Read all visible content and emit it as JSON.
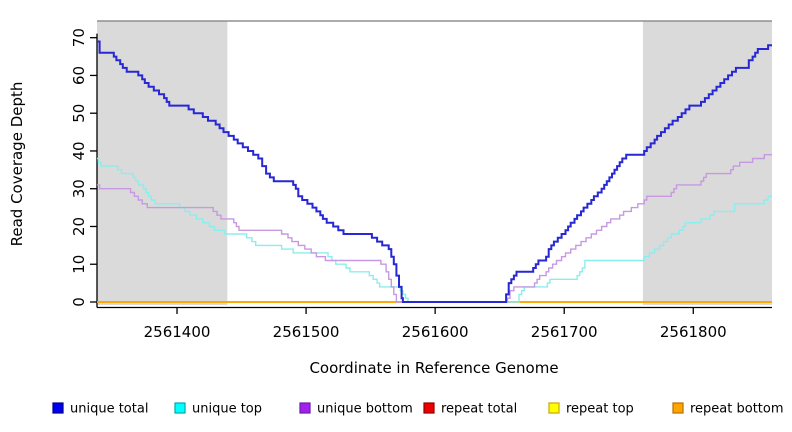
{
  "chart_data": {
    "type": "line",
    "subtype": "step",
    "title": "",
    "xlabel": "Coordinate in Reference Genome",
    "ylabel": "Read Coverage Depth",
    "xlim": [
      2561338,
      2561861
    ],
    "ylim": [
      0,
      70
    ],
    "x_ticks": [
      2561400,
      2561500,
      2561600,
      2561700,
      2561800
    ],
    "x_tick_labels": [
      "2561400",
      "2561500",
      "2561600",
      "2561700",
      "2561800"
    ],
    "y_ticks": [
      0,
      10,
      20,
      30,
      40,
      50,
      60,
      70
    ],
    "y_tick_labels": [
      "0",
      "10",
      "20",
      "30",
      "40",
      "50",
      "60",
      "70"
    ],
    "grid": false,
    "legend_position": "bottom",
    "shaded_regions": [
      {
        "x0": 2561338,
        "x1": 2561439,
        "color": "#dadada"
      },
      {
        "x0": 2561761,
        "x1": 2561861,
        "color": "#dadada"
      }
    ],
    "series": [
      {
        "name": "repeat total",
        "line_color": "#dd0000",
        "legend_fill": "#ee0000",
        "legend_border": "#8b0000",
        "width": 1.4,
        "points": [
          [
            2561338,
            0
          ],
          [
            2561861,
            0
          ]
        ]
      },
      {
        "name": "repeat top",
        "line_color": "#ffff33",
        "legend_fill": "#ffff00",
        "legend_border": "#c8a800",
        "width": 1.4,
        "points": [
          [
            2561338,
            0
          ],
          [
            2561861,
            0
          ]
        ]
      },
      {
        "name": "repeat bottom",
        "line_color": "#ffa500",
        "legend_fill": "#ffa500",
        "legend_border": "#b86e00",
        "width": 1.7,
        "points": [
          [
            2561338,
            0
          ],
          [
            2561861,
            0
          ]
        ]
      },
      {
        "name": "unique top",
        "line_color": "#8ceded",
        "legend_fill": "#00ffff",
        "legend_border": "#00aaaa",
        "width": 1.4,
        "points": [
          [
            2561338,
            38
          ],
          [
            2561339,
            37
          ],
          [
            2561341,
            36
          ],
          [
            2561354,
            35
          ],
          [
            2561357,
            34
          ],
          [
            2561366,
            33
          ],
          [
            2561368,
            32
          ],
          [
            2561370,
            31
          ],
          [
            2561374,
            30
          ],
          [
            2561376,
            29
          ],
          [
            2561378,
            28
          ],
          [
            2561380,
            27
          ],
          [
            2561383,
            26
          ],
          [
            2561402,
            25
          ],
          [
            2561406,
            24
          ],
          [
            2561410,
            23
          ],
          [
            2561415,
            22
          ],
          [
            2561420,
            21
          ],
          [
            2561425,
            20
          ],
          [
            2561429,
            19
          ],
          [
            2561437,
            18
          ],
          [
            2561454,
            17
          ],
          [
            2561458,
            16
          ],
          [
            2561461,
            15
          ],
          [
            2561481,
            14
          ],
          [
            2561490,
            13
          ],
          [
            2561517,
            12
          ],
          [
            2561520,
            11
          ],
          [
            2561523,
            10
          ],
          [
            2561531,
            9
          ],
          [
            2561534,
            8
          ],
          [
            2561549,
            7
          ],
          [
            2561552,
            6
          ],
          [
            2561555,
            5
          ],
          [
            2561557,
            4
          ],
          [
            2561573,
            3
          ],
          [
            2561575,
            2
          ],
          [
            2561577,
            1
          ],
          [
            2561579,
            0
          ],
          [
            2561665,
            2
          ],
          [
            2561667,
            3
          ],
          [
            2561669,
            4
          ],
          [
            2561687,
            5
          ],
          [
            2561689,
            6
          ],
          [
            2561710,
            7
          ],
          [
            2561712,
            8
          ],
          [
            2561714,
            9
          ],
          [
            2561716,
            11
          ],
          [
            2561762,
            12
          ],
          [
            2561766,
            13
          ],
          [
            2561770,
            14
          ],
          [
            2561774,
            15
          ],
          [
            2561777,
            16
          ],
          [
            2561780,
            17
          ],
          [
            2561783,
            18
          ],
          [
            2561789,
            19
          ],
          [
            2561792,
            20
          ],
          [
            2561794,
            21
          ],
          [
            2561806,
            22
          ],
          [
            2561813,
            23
          ],
          [
            2561816,
            24
          ],
          [
            2561832,
            26
          ],
          [
            2561855,
            27
          ],
          [
            2561858,
            28
          ]
        ]
      },
      {
        "name": "unique bottom",
        "line_color": "#c699e1",
        "legend_fill": "#a020f0",
        "legend_border": "#701aa8",
        "width": 1.4,
        "points": [
          [
            2561338,
            31
          ],
          [
            2561340,
            30
          ],
          [
            2561364,
            29
          ],
          [
            2561367,
            28
          ],
          [
            2561370,
            27
          ],
          [
            2561373,
            26
          ],
          [
            2561377,
            25
          ],
          [
            2561428,
            24
          ],
          [
            2561431,
            23
          ],
          [
            2561434,
            22
          ],
          [
            2561444,
            21
          ],
          [
            2561446,
            20
          ],
          [
            2561448,
            19
          ],
          [
            2561481,
            18
          ],
          [
            2561486,
            17
          ],
          [
            2561489,
            16
          ],
          [
            2561494,
            15
          ],
          [
            2561499,
            14
          ],
          [
            2561504,
            13
          ],
          [
            2561508,
            12
          ],
          [
            2561515,
            11
          ],
          [
            2561558,
            10
          ],
          [
            2561562,
            8
          ],
          [
            2561564,
            6
          ],
          [
            2561566,
            4
          ],
          [
            2561568,
            2
          ],
          [
            2561570,
            0
          ],
          [
            2561656,
            1
          ],
          [
            2561658,
            3
          ],
          [
            2561661,
            4
          ],
          [
            2561677,
            5
          ],
          [
            2561679,
            6
          ],
          [
            2561681,
            7
          ],
          [
            2561686,
            8
          ],
          [
            2561688,
            9
          ],
          [
            2561691,
            10
          ],
          [
            2561694,
            11
          ],
          [
            2561698,
            12
          ],
          [
            2561701,
            13
          ],
          [
            2561705,
            14
          ],
          [
            2561709,
            15
          ],
          [
            2561713,
            16
          ],
          [
            2561717,
            17
          ],
          [
            2561721,
            18
          ],
          [
            2561725,
            19
          ],
          [
            2561729,
            20
          ],
          [
            2561733,
            21
          ],
          [
            2561736,
            22
          ],
          [
            2561743,
            23
          ],
          [
            2561746,
            24
          ],
          [
            2561752,
            25
          ],
          [
            2561757,
            26
          ],
          [
            2561762,
            27
          ],
          [
            2561764,
            28
          ],
          [
            2561783,
            29
          ],
          [
            2561785,
            30
          ],
          [
            2561787,
            31
          ],
          [
            2561806,
            32
          ],
          [
            2561808,
            33
          ],
          [
            2561810,
            34
          ],
          [
            2561829,
            35
          ],
          [
            2561831,
            36
          ],
          [
            2561836,
            37
          ],
          [
            2561846,
            38
          ],
          [
            2561855,
            39
          ]
        ]
      },
      {
        "name": "unique total",
        "line_color": "#2727d3",
        "legend_fill": "#0000ee",
        "legend_border": "#00008b",
        "width": 2,
        "points": [
          [
            2561338,
            69
          ],
          [
            2561340,
            66
          ],
          [
            2561351,
            65
          ],
          [
            2561353,
            64
          ],
          [
            2561356,
            63
          ],
          [
            2561358,
            62
          ],
          [
            2561361,
            61
          ],
          [
            2561370,
            60
          ],
          [
            2561373,
            59
          ],
          [
            2561375,
            58
          ],
          [
            2561378,
            57
          ],
          [
            2561382,
            56
          ],
          [
            2561386,
            55
          ],
          [
            2561390,
            54
          ],
          [
            2561392,
            53
          ],
          [
            2561394,
            52
          ],
          [
            2561409,
            51
          ],
          [
            2561413,
            50
          ],
          [
            2561420,
            49
          ],
          [
            2561424,
            48
          ],
          [
            2561430,
            47
          ],
          [
            2561433,
            46
          ],
          [
            2561436,
            45
          ],
          [
            2561440,
            44
          ],
          [
            2561444,
            43
          ],
          [
            2561447,
            42
          ],
          [
            2561451,
            41
          ],
          [
            2561455,
            40
          ],
          [
            2561459,
            39
          ],
          [
            2561463,
            38
          ],
          [
            2561466,
            36
          ],
          [
            2561469,
            34
          ],
          [
            2561472,
            33
          ],
          [
            2561475,
            32
          ],
          [
            2561490,
            31
          ],
          [
            2561492,
            30
          ],
          [
            2561494,
            28
          ],
          [
            2561497,
            27
          ],
          [
            2561501,
            26
          ],
          [
            2561505,
            25
          ],
          [
            2561508,
            24
          ],
          [
            2561511,
            23
          ],
          [
            2561513,
            22
          ],
          [
            2561516,
            21
          ],
          [
            2561521,
            20
          ],
          [
            2561525,
            19
          ],
          [
            2561529,
            18
          ],
          [
            2561551,
            17
          ],
          [
            2561555,
            16
          ],
          [
            2561559,
            15
          ],
          [
            2561564,
            14
          ],
          [
            2561566,
            12
          ],
          [
            2561568,
            10
          ],
          [
            2561570,
            7
          ],
          [
            2561572,
            4
          ],
          [
            2561574,
            1
          ],
          [
            2561575,
            0
          ],
          [
            2561655,
            2
          ],
          [
            2561657,
            5
          ],
          [
            2561659,
            6
          ],
          [
            2561661,
            7
          ],
          [
            2561663,
            8
          ],
          [
            2561676,
            9
          ],
          [
            2561678,
            10
          ],
          [
            2561680,
            11
          ],
          [
            2561686,
            12
          ],
          [
            2561688,
            14
          ],
          [
            2561690,
            15
          ],
          [
            2561692,
            16
          ],
          [
            2561695,
            17
          ],
          [
            2561698,
            18
          ],
          [
            2561701,
            19
          ],
          [
            2561703,
            20
          ],
          [
            2561705,
            21
          ],
          [
            2561708,
            22
          ],
          [
            2561710,
            23
          ],
          [
            2561713,
            24
          ],
          [
            2561715,
            25
          ],
          [
            2561718,
            26
          ],
          [
            2561721,
            27
          ],
          [
            2561723,
            28
          ],
          [
            2561726,
            29
          ],
          [
            2561729,
            30
          ],
          [
            2561731,
            31
          ],
          [
            2561733,
            32
          ],
          [
            2561735,
            33
          ],
          [
            2561737,
            34
          ],
          [
            2561739,
            35
          ],
          [
            2561741,
            36
          ],
          [
            2561743,
            37
          ],
          [
            2561745,
            38
          ],
          [
            2561748,
            39
          ],
          [
            2561762,
            40
          ],
          [
            2561764,
            41
          ],
          [
            2561767,
            42
          ],
          [
            2561770,
            43
          ],
          [
            2561772,
            44
          ],
          [
            2561775,
            45
          ],
          [
            2561778,
            46
          ],
          [
            2561781,
            47
          ],
          [
            2561784,
            48
          ],
          [
            2561788,
            49
          ],
          [
            2561791,
            50
          ],
          [
            2561794,
            51
          ],
          [
            2561797,
            52
          ],
          [
            2561806,
            53
          ],
          [
            2561809,
            54
          ],
          [
            2561812,
            55
          ],
          [
            2561815,
            56
          ],
          [
            2561818,
            57
          ],
          [
            2561821,
            58
          ],
          [
            2561824,
            59
          ],
          [
            2561827,
            60
          ],
          [
            2561830,
            61
          ],
          [
            2561833,
            62
          ],
          [
            2561843,
            64
          ],
          [
            2561846,
            65
          ],
          [
            2561848,
            66
          ],
          [
            2561850,
            67
          ],
          [
            2561858,
            68
          ]
        ]
      }
    ],
    "legend": [
      {
        "label": "unique total"
      },
      {
        "label": "unique top"
      },
      {
        "label": "unique bottom"
      },
      {
        "label": "repeat total"
      },
      {
        "label": "repeat top"
      },
      {
        "label": "repeat bottom"
      }
    ]
  },
  "colors": {
    "background": "#ffffff",
    "shading": "#dadada",
    "plot_top_border": "#909090",
    "axis": "#000000"
  }
}
